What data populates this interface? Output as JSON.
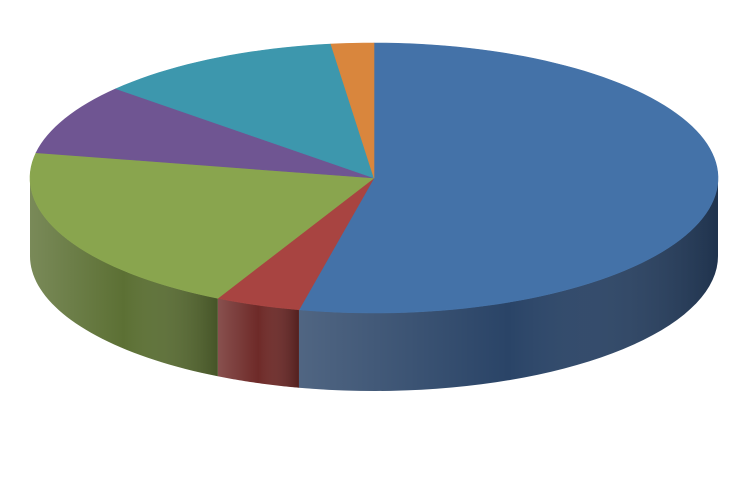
{
  "chart_data": {
    "type": "pie",
    "style": "3d",
    "title": "",
    "legend": "none",
    "slices": [
      {
        "value": 53.5,
        "color": "#4472a8",
        "side_color": "#2a4467"
      },
      {
        "value": 4.0,
        "color": "#a84441",
        "side_color": "#6e2a28"
      },
      {
        "value": 20.5,
        "color": "#89a54e",
        "side_color": "#5c7034"
      },
      {
        "value": 8.5,
        "color": "#6f5592",
        "side_color": "#4a385f"
      },
      {
        "value": 11.5,
        "color": "#3d97ad",
        "side_color": "#28657a"
      },
      {
        "value": 2.0,
        "color": "#d9863d",
        "side_color": "#945b29"
      }
    ]
  }
}
